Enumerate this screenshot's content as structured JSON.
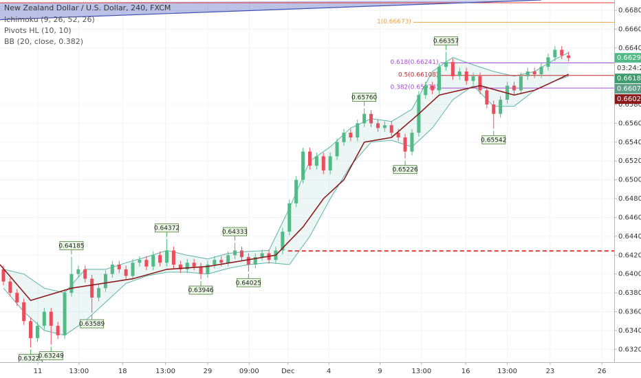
{
  "chart_data": {
    "type": "candlestick",
    "title": "New Zealand Dollar / U.S. Dollar, 240, FXCM",
    "indicators": [
      "Ichimoku (9, 26, 52, 26)",
      "Pivots HL (10, 10)",
      "BB (20, close, 0.382)"
    ],
    "up_color": "#53b987",
    "down_color": "#eb4d5c",
    "grid": true,
    "xlim": [
      -0.5,
      89.7
    ],
    "ylim": [
      0.63064,
      0.66909
    ],
    "xticks": [
      {
        "value": 5.05,
        "label": "11"
      },
      {
        "value": 11.1,
        "label": "13:00"
      },
      {
        "value": 17.5,
        "label": "18"
      },
      {
        "value": 23.8,
        "label": "13:00"
      },
      {
        "value": 30,
        "label": "29"
      },
      {
        "value": 36.1,
        "label": "09:00"
      },
      {
        "value": 41.8,
        "label": "Dec"
      },
      {
        "value": 47.8,
        "label": "4"
      },
      {
        "value": 55.3,
        "label": "9"
      },
      {
        "value": 61.4,
        "label": "13:00"
      },
      {
        "value": 67.9,
        "label": "16"
      },
      {
        "value": 74,
        "label": "13:00"
      },
      {
        "value": 80.3,
        "label": "23"
      },
      {
        "value": 87.9,
        "label": "26"
      }
    ],
    "yticks": [
      {
        "value": 0.668,
        "label": "0.66800"
      },
      {
        "value": 0.666,
        "label": "0.66600"
      },
      {
        "value": 0.664,
        "label": "0.66400"
      },
      {
        "value": 0.658,
        "label": "0.65800"
      },
      {
        "value": 0.656,
        "label": "0.65600"
      },
      {
        "value": 0.654,
        "label": "0.65400"
      },
      {
        "value": 0.652,
        "label": "0.65200"
      },
      {
        "value": 0.65,
        "label": "0.65000"
      },
      {
        "value": 0.648,
        "label": "0.64800"
      },
      {
        "value": 0.646,
        "label": "0.64600"
      },
      {
        "value": 0.644,
        "label": "0.64400"
      },
      {
        "value": 0.642,
        "label": "0.64200"
      },
      {
        "value": 0.64,
        "label": "0.64000"
      },
      {
        "value": 0.638,
        "label": "0.63800"
      },
      {
        "value": 0.636,
        "label": "0.63600"
      },
      {
        "value": 0.634,
        "label": "0.63400"
      },
      {
        "value": 0.632,
        "label": "0.63200"
      }
    ],
    "candles": {
      "open": [
        0.6405,
        0.6392,
        0.638,
        0.637,
        0.635,
        0.6332,
        0.6345,
        0.636,
        0.6345,
        0.6335,
        0.638,
        0.64,
        0.6405,
        0.6395,
        0.6375,
        0.6385,
        0.64,
        0.641,
        0.6405,
        0.6398,
        0.6412,
        0.6415,
        0.6408,
        0.642,
        0.6412,
        0.6425,
        0.641,
        0.6405,
        0.6412,
        0.6408,
        0.64,
        0.641,
        0.6415,
        0.6412,
        0.642,
        0.6425,
        0.6418,
        0.641,
        0.6418,
        0.6422,
        0.6415,
        0.6425,
        0.6445,
        0.6475,
        0.65,
        0.653,
        0.6515,
        0.6525,
        0.651,
        0.6525,
        0.654,
        0.655,
        0.6545,
        0.656,
        0.657,
        0.656,
        0.6555,
        0.6558,
        0.655,
        0.6545,
        0.653,
        0.655,
        0.659,
        0.66,
        0.6595,
        0.662,
        0.6625,
        0.661,
        0.6615,
        0.6605,
        0.661,
        0.6595,
        0.658,
        0.657,
        0.6585,
        0.66,
        0.6595,
        0.661,
        0.6615,
        0.6612,
        0.662,
        0.663,
        0.6638,
        0.6632
      ],
      "high": [
        0.6409,
        0.6396,
        0.6384,
        0.6374,
        0.6354,
        0.6349,
        0.6364,
        0.6364,
        0.6349,
        0.6384,
        0.64185,
        0.6409,
        0.6409,
        0.6399,
        0.6389,
        0.6404,
        0.6414,
        0.6414,
        0.6409,
        0.6416,
        0.6419,
        0.6419,
        0.6424,
        0.6424,
        0.64372,
        0.6429,
        0.6414,
        0.6416,
        0.6416,
        0.6412,
        0.6414,
        0.6419,
        0.6419,
        0.6424,
        0.64333,
        0.6429,
        0.6422,
        0.6422,
        0.6426,
        0.6426,
        0.6429,
        0.6449,
        0.6479,
        0.6504,
        0.6534,
        0.6534,
        0.6529,
        0.6529,
        0.6529,
        0.6544,
        0.6554,
        0.6554,
        0.6564,
        0.6576,
        0.6574,
        0.6564,
        0.6562,
        0.6562,
        0.6554,
        0.6549,
        0.6554,
        0.6594,
        0.6604,
        0.6604,
        0.6624,
        0.66357,
        0.6629,
        0.6619,
        0.6619,
        0.6614,
        0.6614,
        0.6599,
        0.6584,
        0.6589,
        0.6604,
        0.6604,
        0.6614,
        0.6619,
        0.6619,
        0.6624,
        0.6634,
        0.6642,
        0.6642,
        0.6636
      ],
      "low": [
        0.6388,
        0.6376,
        0.6366,
        0.6346,
        0.6322,
        0.6328,
        0.6341,
        0.63249,
        0.6331,
        0.6331,
        0.6376,
        0.6396,
        0.6391,
        0.63589,
        0.6371,
        0.6381,
        0.6396,
        0.6401,
        0.6394,
        0.6394,
        0.6408,
        0.6404,
        0.6404,
        0.6408,
        0.6408,
        0.6406,
        0.6401,
        0.6401,
        0.6404,
        0.63946,
        0.6396,
        0.6406,
        0.6408,
        0.6408,
        0.6416,
        0.6414,
        0.64025,
        0.6406,
        0.6414,
        0.6411,
        0.6411,
        0.6421,
        0.6441,
        0.6471,
        0.6496,
        0.6511,
        0.6511,
        0.6506,
        0.6506,
        0.6521,
        0.6536,
        0.6541,
        0.6541,
        0.6556,
        0.6556,
        0.6551,
        0.6551,
        0.6546,
        0.6541,
        0.65226,
        0.6526,
        0.6546,
        0.6586,
        0.6591,
        0.6591,
        0.6616,
        0.6606,
        0.6606,
        0.6601,
        0.6601,
        0.6591,
        0.6576,
        0.65542,
        0.6566,
        0.6581,
        0.6591,
        0.6591,
        0.6606,
        0.6608,
        0.6608,
        0.6616,
        0.6626,
        0.6628,
        0.66255
      ],
      "close": [
        0.6392,
        0.638,
        0.637,
        0.635,
        0.6332,
        0.6345,
        0.636,
        0.6345,
        0.6335,
        0.638,
        0.64,
        0.6405,
        0.6395,
        0.6375,
        0.6385,
        0.64,
        0.641,
        0.6405,
        0.6398,
        0.6412,
        0.6415,
        0.6408,
        0.642,
        0.6412,
        0.6425,
        0.641,
        0.6405,
        0.6412,
        0.6408,
        0.64,
        0.641,
        0.6415,
        0.6412,
        0.642,
        0.6425,
        0.6418,
        0.641,
        0.6418,
        0.6422,
        0.6415,
        0.6425,
        0.6445,
        0.6475,
        0.65,
        0.653,
        0.6515,
        0.6525,
        0.651,
        0.6525,
        0.654,
        0.655,
        0.6545,
        0.656,
        0.657,
        0.656,
        0.6555,
        0.6558,
        0.655,
        0.6545,
        0.653,
        0.655,
        0.659,
        0.66,
        0.6595,
        0.662,
        0.6625,
        0.661,
        0.6615,
        0.6605,
        0.661,
        0.6595,
        0.658,
        0.657,
        0.6585,
        0.66,
        0.6595,
        0.661,
        0.6615,
        0.6612,
        0.662,
        0.663,
        0.6638,
        0.6632,
        0.66295
      ]
    },
    "bb": {
      "color": "#5fb3a8",
      "x": [
        0,
        3,
        6,
        9,
        12,
        15,
        18,
        21,
        24,
        27,
        30,
        33,
        36,
        39,
        42,
        45,
        48,
        51,
        54,
        57,
        60,
        63,
        66,
        69,
        72,
        75,
        78,
        81,
        83
      ],
      "upper": [
        0.6405,
        0.64,
        0.6385,
        0.638,
        0.6405,
        0.6405,
        0.6412,
        0.6418,
        0.6425,
        0.642,
        0.6416,
        0.6422,
        0.6424,
        0.6425,
        0.647,
        0.652,
        0.6535,
        0.6555,
        0.6565,
        0.6562,
        0.6575,
        0.6615,
        0.663,
        0.6622,
        0.6615,
        0.661,
        0.6615,
        0.6628,
        0.6635
      ],
      "lower": [
        0.6385,
        0.636,
        0.634,
        0.6335,
        0.635,
        0.637,
        0.639,
        0.6398,
        0.6402,
        0.6402,
        0.64,
        0.6406,
        0.641,
        0.6412,
        0.641,
        0.644,
        0.648,
        0.6515,
        0.654,
        0.6542,
        0.6535,
        0.6555,
        0.6585,
        0.66,
        0.6578,
        0.6578,
        0.6595,
        0.6605,
        0.661
      ]
    },
    "kijun": {
      "color": "#8b1a1a",
      "x": [
        -0.5,
        4,
        10,
        19,
        24,
        30,
        40,
        44,
        47,
        50,
        53,
        57,
        61,
        64,
        70,
        75,
        78,
        81,
        83
      ],
      "values": [
        0.641,
        0.6372,
        0.6385,
        0.6395,
        0.6405,
        0.6408,
        0.642,
        0.645,
        0.648,
        0.65,
        0.654,
        0.6545,
        0.657,
        0.659,
        0.66,
        0.659,
        0.6595,
        0.6605,
        0.6612
      ]
    },
    "pivot_highs": [
      {
        "x": 10,
        "value": 0.64185,
        "label": "0.64185"
      },
      {
        "x": 24,
        "value": 0.64372,
        "label": "0.64372"
      },
      {
        "x": 34,
        "value": 0.64333,
        "label": "0.64333"
      },
      {
        "x": 53,
        "value": 0.6576,
        "label": "0.65760"
      },
      {
        "x": 65,
        "value": 0.66357,
        "label": "0.66357"
      }
    ],
    "pivot_lows": [
      {
        "x": 4,
        "value": 0.6322,
        "label": "0.63220"
      },
      {
        "x": 7,
        "value": 0.63249,
        "label": "0.63249"
      },
      {
        "x": 13,
        "value": 0.63589,
        "label": "0.63589"
      },
      {
        "x": 29,
        "value": 0.63946,
        "label": "0.63946"
      },
      {
        "x": 36,
        "value": 0.64025,
        "label": "0.64025"
      },
      {
        "x": 59,
        "value": 0.65226,
        "label": "0.65226"
      },
      {
        "x": 72,
        "value": 0.65542,
        "label": "0.65542"
      }
    ],
    "fib_levels": [
      {
        "value": 0.66673,
        "label": "1(0.66673)",
        "color": "#f0a040"
      },
      {
        "value": 0.66241,
        "label": "0.618(0.66241)",
        "color": "#a64dd6"
      },
      {
        "value": 0.66108,
        "label": "0.5(0.66108)",
        "color": "#c62828"
      },
      {
        "value": 0.65974,
        "label": "0.382(0.65974)",
        "color": "#a64dd6"
      }
    ],
    "hline": {
      "value": 0.6688,
      "color": "#e53935"
    },
    "dashed_line": {
      "value": 0.64245,
      "color": "#e53935"
    },
    "trend_line": {
      "color": "#3f51b5",
      "x": [
        -0.5,
        79
      ],
      "values": [
        0.667,
        0.66909
      ]
    },
    "price_labels": [
      {
        "value": 0.66295,
        "label": "0.66295",
        "color": "#53b987"
      },
      {
        "value": 0.66188,
        "label": "0.66188",
        "color": "#3e9b6e"
      },
      {
        "value": 0.66071,
        "label": "0.66071",
        "color": "#5f9e86"
      },
      {
        "value": 0.66022,
        "label": "0.66022",
        "color": "#8b1a1a"
      }
    ],
    "countdown": "03:24:22"
  }
}
